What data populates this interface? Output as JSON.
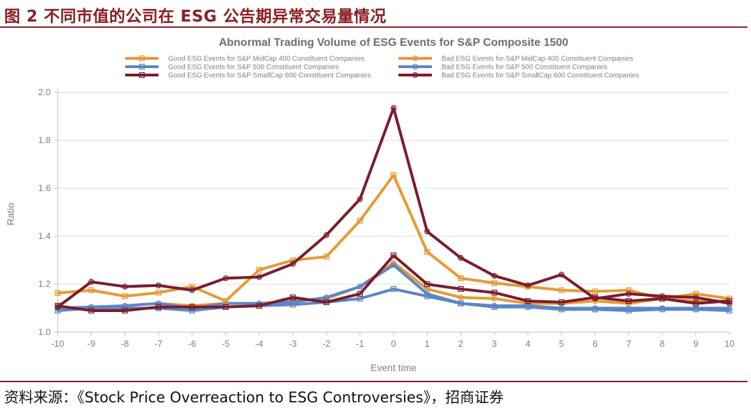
{
  "header": {
    "figure_title": "图 2 不同市值的公司在 ESG 公告期异常交易量情况"
  },
  "footer": {
    "source": "资料来源：《Stock Price Overreaction to ESG Controversies》，招商证券"
  },
  "colors": {
    "accent": "#8B1E22",
    "midcap": "#E69A35",
    "sp500": "#5B86C6",
    "smallcap": "#7B1C2C",
    "grid": "#dcdcdc",
    "axis": "#bdbdbd"
  },
  "chart_data": {
    "type": "line",
    "title": "Abnormal Trading Volume of ESG Events for S&P Composite 1500",
    "xlabel": "Event time",
    "ylabel": "Ratio",
    "x": [
      -10,
      -9,
      -8,
      -7,
      -6,
      -5,
      -4,
      -3,
      -2,
      -1,
      0,
      1,
      2,
      3,
      4,
      5,
      6,
      7,
      8,
      9,
      10
    ],
    "x_tick_labels": [
      "-10",
      "-9",
      "-8",
      "-7",
      "-6",
      "-5",
      "-4",
      "-3",
      "-2",
      "-1",
      "0",
      "1",
      "2",
      "3",
      "4",
      "5",
      "6",
      "7",
      "8",
      "9",
      "10"
    ],
    "ylim": [
      1.0,
      2.0
    ],
    "y_ticks": [
      1.0,
      1.2,
      1.4,
      1.6,
      1.8,
      2.0
    ],
    "y_tick_labels": [
      "1.0",
      "1.2",
      "1.4",
      "1.6",
      "1.8",
      "2.0"
    ],
    "grid": "horizontal",
    "legend_position": "top",
    "series": [
      {
        "name": "Good ESG Events for S&P MidCap 400 Constituent Companies",
        "color": "#E69A35",
        "marker": "square",
        "values": [
          1.163,
          1.175,
          1.15,
          1.165,
          1.19,
          1.13,
          1.26,
          1.3,
          1.315,
          1.465,
          1.655,
          1.335,
          1.225,
          1.205,
          1.19,
          1.175,
          1.17,
          1.175,
          1.14,
          1.16,
          1.14
        ]
      },
      {
        "name": "Bad ESG Events for S&P MidCap 400 Constituent Companies",
        "color": "#E69A35",
        "marker": "circle",
        "values": [
          1.1,
          1.1,
          1.11,
          1.12,
          1.11,
          1.12,
          1.12,
          1.13,
          1.14,
          1.19,
          1.29,
          1.18,
          1.145,
          1.14,
          1.12,
          1.12,
          1.13,
          1.12,
          1.14,
          1.13,
          1.13
        ]
      },
      {
        "name": "Good ESG Events for S&P 500 Constituent Companies",
        "color": "#5B86C6",
        "marker": "square",
        "values": [
          1.09,
          1.1,
          1.1,
          1.1,
          1.09,
          1.105,
          1.11,
          1.115,
          1.125,
          1.14,
          1.18,
          1.15,
          1.12,
          1.105,
          1.105,
          1.095,
          1.095,
          1.09,
          1.095,
          1.095,
          1.09
        ]
      },
      {
        "name": "Bad ESG Events for S&P 500 Constituent Companies",
        "color": "#5B86C6",
        "marker": "circle",
        "values": [
          1.1,
          1.105,
          1.11,
          1.12,
          1.1,
          1.12,
          1.12,
          1.125,
          1.145,
          1.19,
          1.28,
          1.16,
          1.12,
          1.11,
          1.11,
          1.1,
          1.1,
          1.1,
          1.1,
          1.1,
          1.1
        ]
      },
      {
        "name": "Good ESG Events for S&P SmallCap 600 Constituent Companies",
        "color": "#7B1C2C",
        "marker": "square",
        "values": [
          1.11,
          1.09,
          1.09,
          1.105,
          1.105,
          1.105,
          1.11,
          1.145,
          1.125,
          1.16,
          1.32,
          1.2,
          1.18,
          1.165,
          1.13,
          1.125,
          1.145,
          1.13,
          1.14,
          1.12,
          1.13
        ]
      },
      {
        "name": "Bad ESG Events for S&P SmallCap 600 Constituent Companies",
        "color": "#7B1C2C",
        "marker": "circle",
        "values": [
          1.105,
          1.21,
          1.19,
          1.195,
          1.175,
          1.225,
          1.23,
          1.285,
          1.405,
          1.555,
          1.935,
          1.42,
          1.31,
          1.235,
          1.195,
          1.24,
          1.14,
          1.16,
          1.15,
          1.145,
          1.12
        ]
      }
    ]
  }
}
